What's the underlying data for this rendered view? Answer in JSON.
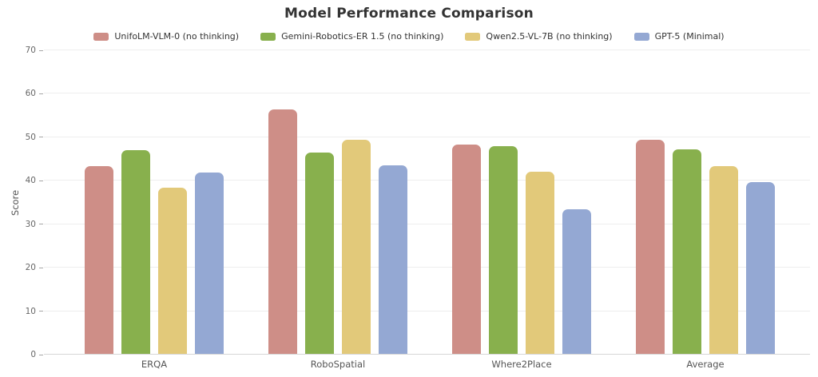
{
  "chart_data": {
    "type": "bar",
    "title": "Model Performance Comparison",
    "categories": [
      "ERQA",
      "RoboSpatial",
      "Where2Place",
      "Average"
    ],
    "series": [
      {
        "name": "UnifoLM-VLM-0 (no thinking)",
        "color": "#ce8e87",
        "values": [
          43.1,
          56.2,
          48.2,
          49.2
        ]
      },
      {
        "name": "Gemini-Robotics-ER 1.5 (no thinking)",
        "color": "#88b04d",
        "values": [
          46.8,
          46.3,
          47.8,
          47.0
        ]
      },
      {
        "name": "Qwen2.5-VL-7B (no thinking)",
        "color": "#e2c97a",
        "values": [
          38.3,
          49.3,
          41.9,
          43.2
        ]
      },
      {
        "name": "GPT-5 (Minimal)",
        "color": "#94a8d3",
        "values": [
          41.8,
          43.4,
          33.3,
          39.5
        ]
      }
    ],
    "xlabel": "",
    "ylabel": "Score",
    "ylim": [
      0,
      70
    ],
    "ytick_step": 10,
    "grid": true,
    "legend_position": "top",
    "colors": {
      "title_text": "#333333",
      "axis_text": "#666666",
      "gridline": "#eeeeee",
      "baseline": "#d6d6d6",
      "background": "#ffffff"
    }
  }
}
